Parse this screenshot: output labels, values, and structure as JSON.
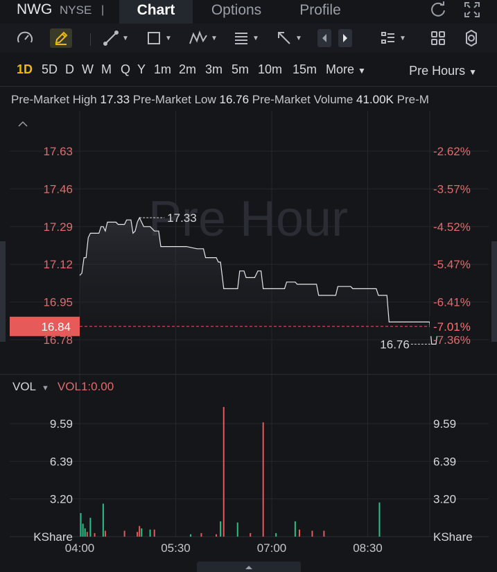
{
  "header": {
    "ticker": "NWG",
    "exchange": "NYSE",
    "separator": "|",
    "tabs": [
      {
        "label": "Chart",
        "active": true
      },
      {
        "label": "Options",
        "active": false
      },
      {
        "label": "Profile",
        "active": false
      }
    ]
  },
  "toolbar": {
    "icons": [
      "gauge-icon",
      "pencil-icon",
      "line-tool-icon",
      "rectangle-tool-icon",
      "pattern-tool-icon",
      "fibonacci-tool-icon",
      "arrow-tool-icon",
      "step-back-icon",
      "step-forward-icon",
      "list-icon",
      "grid-icon",
      "gear-icon"
    ]
  },
  "periods": {
    "items": [
      "1D",
      "5D",
      "D",
      "W",
      "M",
      "Q",
      "Y",
      "1m",
      "2m",
      "3m",
      "5m",
      "10m",
      "15m",
      "More"
    ],
    "active": "1D",
    "session_label": "Pre Hours"
  },
  "stats": {
    "high_label": "Pre-Market High",
    "high_value": "17.33",
    "low_label": "Pre-Market Low",
    "low_value": "16.76",
    "volume_label": "Pre-Market Volume",
    "volume_value": "41.00K",
    "overflow_label": "Pre-M"
  },
  "chart_data": {
    "type": "line",
    "watermark": "Pre Hour",
    "price_ticks": [
      "17.63",
      "17.46",
      "17.29",
      "17.12",
      "16.95",
      "16.78"
    ],
    "percent_ticks": [
      "-2.62%",
      "-3.57%",
      "-4.52%",
      "-5.47%",
      "-6.41%",
      "-7.36%"
    ],
    "current_price": "16.84",
    "current_percent": "-7.01%",
    "high_marker": "17.33",
    "low_marker": "16.76",
    "ylim": [
      16.72,
      17.75
    ],
    "x_minutes_range": [
      0,
      308
    ],
    "series": [
      {
        "points": [
          [
            0,
            17.07
          ],
          [
            2,
            17.08
          ],
          [
            4,
            17.15
          ],
          [
            6,
            17.15
          ],
          [
            8,
            17.24
          ],
          [
            10,
            17.26
          ],
          [
            18,
            17.26
          ],
          [
            20,
            17.29
          ],
          [
            22,
            17.29
          ],
          [
            24,
            17.27
          ],
          [
            26,
            17.31
          ],
          [
            34,
            17.31
          ],
          [
            36,
            17.3
          ],
          [
            42,
            17.3
          ],
          [
            44,
            17.32
          ],
          [
            48,
            17.32
          ],
          [
            50,
            17.26
          ],
          [
            52,
            17.27
          ],
          [
            54,
            17.31
          ],
          [
            56,
            17.33
          ],
          [
            58,
            17.31
          ],
          [
            60,
            17.29
          ],
          [
            66,
            17.29
          ],
          [
            70,
            17.27
          ],
          [
            74,
            17.27
          ],
          [
            76,
            17.2
          ],
          [
            100,
            17.2
          ],
          [
            110,
            17.19
          ],
          [
            116,
            17.19
          ],
          [
            118,
            17.15
          ],
          [
            128,
            17.15
          ],
          [
            130,
            17.13
          ],
          [
            132,
            17.13
          ],
          [
            135,
            17.01
          ],
          [
            148,
            17.01
          ],
          [
            150,
            17.09
          ],
          [
            154,
            17.09
          ],
          [
            156,
            17.06
          ],
          [
            164,
            17.06
          ],
          [
            167,
            17.09
          ],
          [
            170,
            17.09
          ],
          [
            172,
            17.01
          ],
          [
            192,
            17.01
          ],
          [
            194,
            17.04
          ],
          [
            202,
            17.04
          ],
          [
            204,
            17.03
          ],
          [
            222,
            17.03
          ],
          [
            224,
            16.98
          ],
          [
            240,
            16.98
          ],
          [
            242,
            17.02
          ],
          [
            254,
            17.02
          ],
          [
            256,
            17.01
          ],
          [
            278,
            17.01
          ],
          [
            280,
            16.98
          ],
          [
            288,
            16.98
          ],
          [
            290,
            16.86
          ],
          [
            328,
            16.86
          ],
          [
            330,
            16.76
          ],
          [
            334,
            16.76
          ],
          [
            336,
            16.84
          ],
          [
            344,
            16.84
          ]
        ]
      }
    ],
    "volume": {
      "header_label": "VOL",
      "indicator": "VOL1:0.00",
      "ticks": [
        "9.59",
        "6.39",
        "3.20"
      ],
      "ylim": [
        0,
        12
      ],
      "bottom_label": "KShare",
      "bars": [
        {
          "t": 1,
          "v": 2.0,
          "up": true
        },
        {
          "t": 3,
          "v": 1.1,
          "up": true
        },
        {
          "t": 5,
          "v": 0.7,
          "up": true
        },
        {
          "t": 7,
          "v": 0.4,
          "up": false
        },
        {
          "t": 10,
          "v": 1.6,
          "up": true
        },
        {
          "t": 14,
          "v": 0.3,
          "up": false
        },
        {
          "t": 22,
          "v": 2.8,
          "up": true
        },
        {
          "t": 24,
          "v": 0.5,
          "up": false
        },
        {
          "t": 42,
          "v": 0.5,
          "up": false
        },
        {
          "t": 54,
          "v": 0.4,
          "up": false
        },
        {
          "t": 56,
          "v": 0.9,
          "up": false
        },
        {
          "t": 58,
          "v": 0.7,
          "up": true
        },
        {
          "t": 66,
          "v": 0.6,
          "up": true
        },
        {
          "t": 70,
          "v": 0.6,
          "up": false
        },
        {
          "t": 104,
          "v": 0.2,
          "up": true
        },
        {
          "t": 114,
          "v": 0.3,
          "up": false
        },
        {
          "t": 128,
          "v": 0.2,
          "up": false
        },
        {
          "t": 132,
          "v": 1.3,
          "up": true
        },
        {
          "t": 135,
          "v": 11.0,
          "up": false
        },
        {
          "t": 148,
          "v": 1.2,
          "up": true
        },
        {
          "t": 160,
          "v": 0.3,
          "up": false
        },
        {
          "t": 172,
          "v": 9.7,
          "up": false
        },
        {
          "t": 184,
          "v": 0.3,
          "up": true
        },
        {
          "t": 202,
          "v": 1.3,
          "up": true
        },
        {
          "t": 206,
          "v": 0.6,
          "up": false
        },
        {
          "t": 218,
          "v": 0.5,
          "up": false
        },
        {
          "t": 229,
          "v": 0.5,
          "up": false
        },
        {
          "t": 281,
          "v": 2.9,
          "up": true
        }
      ]
    },
    "time_ticks": [
      {
        "label": "04:00",
        "t": 0
      },
      {
        "label": "05:30",
        "t": 90
      },
      {
        "label": "07:00",
        "t": 180
      },
      {
        "label": "08:30",
        "t": 270
      }
    ],
    "colors": {
      "up": "#27c289",
      "down": "#e65a5a",
      "line": "#e6e8ea",
      "current": "#e65a5a"
    }
  }
}
